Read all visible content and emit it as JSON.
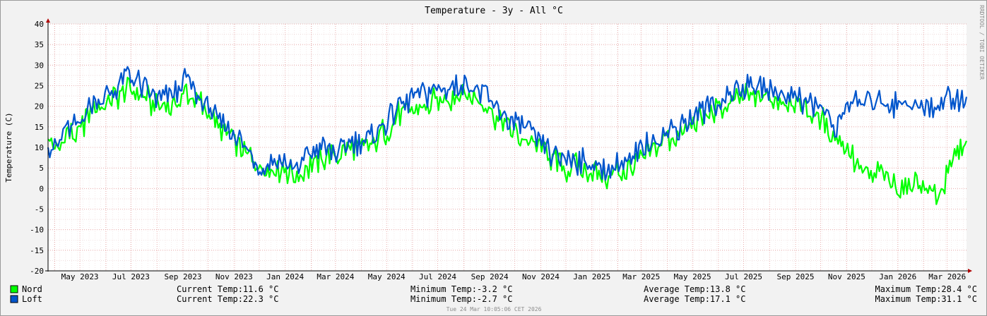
{
  "chart_data": {
    "type": "line",
    "title": "Temperature - 3y - All °C",
    "ylabel": "Temperature (C)",
    "xlabel": "",
    "ylim": [
      -20,
      40
    ],
    "yticks": [
      40,
      35,
      30,
      25,
      20,
      15,
      10,
      5,
      0,
      -5,
      -10,
      -15,
      -20
    ],
    "xticks": [
      "May 2023",
      "Jul 2023",
      "Sep 2023",
      "Nov 2023",
      "Jan 2024",
      "Mar 2024",
      "May 2024",
      "Jul 2024",
      "Sep 2024",
      "Nov 2024",
      "Jan 2025",
      "Mar 2025",
      "May 2025",
      "Jul 2025",
      "Sep 2025",
      "Nov 2025",
      "Jan 2026",
      "Mar 2026"
    ],
    "x_range": [
      "2023-03-24",
      "2026-03-24"
    ],
    "grid": true,
    "legend_position": "bottom-left",
    "series": [
      {
        "name": "Nord",
        "color": "#00ff00",
        "stats": {
          "current": "Current Temp:11.6 °C",
          "minimum": "Minimum Temp:-3.2 °C",
          "average": "Average Temp:13.8 °C",
          "maximum": "Maximum Temp:28.4 °C"
        },
        "points": [
          [
            "2023-03-24",
            12
          ],
          [
            "2023-04-05",
            10
          ],
          [
            "2023-04-15",
            14
          ],
          [
            "2023-04-28",
            13
          ],
          [
            "2023-05-10",
            18
          ],
          [
            "2023-05-25",
            20
          ],
          [
            "2023-06-10",
            22
          ],
          [
            "2023-06-25",
            24
          ],
          [
            "2023-07-10",
            23
          ],
          [
            "2023-07-25",
            21
          ],
          [
            "2023-08-10",
            20
          ],
          [
            "2023-08-25",
            21
          ],
          [
            "2023-09-05",
            24
          ],
          [
            "2023-09-15",
            22
          ],
          [
            "2023-09-30",
            19
          ],
          [
            "2023-10-15",
            15
          ],
          [
            "2023-10-31",
            12
          ],
          [
            "2023-11-15",
            9
          ],
          [
            "2023-11-30",
            5
          ],
          [
            "2023-12-15",
            4
          ],
          [
            "2023-12-31",
            5
          ],
          [
            "2024-01-15",
            3
          ],
          [
            "2024-01-31",
            6
          ],
          [
            "2024-02-15",
            7
          ],
          [
            "2024-02-29",
            8
          ],
          [
            "2024-03-15",
            9
          ],
          [
            "2024-03-31",
            10
          ],
          [
            "2024-04-15",
            11
          ],
          [
            "2024-04-30",
            14
          ],
          [
            "2024-05-15",
            18
          ],
          [
            "2024-05-31",
            19
          ],
          [
            "2024-06-15",
            20
          ],
          [
            "2024-06-30",
            21
          ],
          [
            "2024-07-15",
            22
          ],
          [
            "2024-07-31",
            23
          ],
          [
            "2024-08-15",
            22
          ],
          [
            "2024-08-31",
            20
          ],
          [
            "2024-09-15",
            16
          ],
          [
            "2024-09-30",
            14
          ],
          [
            "2024-10-15",
            12
          ],
          [
            "2024-10-31",
            10
          ],
          [
            "2024-11-15",
            7
          ],
          [
            "2024-11-30",
            5
          ],
          [
            "2024-12-15",
            5
          ],
          [
            "2024-12-31",
            4
          ],
          [
            "2025-01-15",
            3
          ],
          [
            "2025-01-31",
            4
          ],
          [
            "2025-02-15",
            5
          ],
          [
            "2025-02-28",
            7
          ],
          [
            "2025-03-15",
            9
          ],
          [
            "2025-03-31",
            12
          ],
          [
            "2025-04-15",
            13
          ],
          [
            "2025-04-30",
            15
          ],
          [
            "2025-05-15",
            17
          ],
          [
            "2025-05-31",
            19
          ],
          [
            "2025-06-15",
            21
          ],
          [
            "2025-06-30",
            22
          ],
          [
            "2025-07-15",
            23
          ],
          [
            "2025-07-31",
            22
          ],
          [
            "2025-08-15",
            21
          ],
          [
            "2025-08-31",
            21
          ],
          [
            "2025-09-15",
            19
          ],
          [
            "2025-09-30",
            17
          ],
          [
            "2025-10-10",
            15
          ],
          [
            "2025-10-20",
            12
          ],
          [
            "2025-10-31",
            10
          ],
          [
            "2025-11-10",
            7
          ],
          [
            "2025-11-20",
            4
          ],
          [
            "2025-11-30",
            3
          ],
          [
            "2025-12-10",
            5
          ],
          [
            "2025-12-20",
            2
          ],
          [
            "2025-12-31",
            1
          ],
          [
            "2026-01-10",
            -1
          ],
          [
            "2026-01-20",
            3
          ],
          [
            "2026-01-31",
            0
          ],
          [
            "2026-02-10",
            -1
          ],
          [
            "2026-02-20",
            -2
          ],
          [
            "2026-02-28",
            2
          ],
          [
            "2026-03-08",
            7
          ],
          [
            "2026-03-15",
            10
          ],
          [
            "2026-03-24",
            11.6
          ]
        ]
      },
      {
        "name": "Loft",
        "color": "#0055cc",
        "stats": {
          "current": "Current Temp:22.3 °C",
          "minimum": "Minimum Temp:-2.7 °C",
          "average": "Average Temp:17.1 °C",
          "maximum": "Maximum Temp:31.1 °C"
        },
        "points": [
          [
            "2023-03-24",
            10
          ],
          [
            "2023-04-05",
            11
          ],
          [
            "2023-04-15",
            15
          ],
          [
            "2023-04-28",
            15
          ],
          [
            "2023-05-10",
            20
          ],
          [
            "2023-05-25",
            22
          ],
          [
            "2023-06-10",
            24
          ],
          [
            "2023-06-25",
            27
          ],
          [
            "2023-07-10",
            26
          ],
          [
            "2023-07-25",
            22
          ],
          [
            "2023-08-10",
            22
          ],
          [
            "2023-08-25",
            23
          ],
          [
            "2023-09-05",
            27
          ],
          [
            "2023-09-15",
            24
          ],
          [
            "2023-09-30",
            20
          ],
          [
            "2023-10-15",
            16
          ],
          [
            "2023-10-31",
            13
          ],
          [
            "2023-11-15",
            10
          ],
          [
            "2023-11-30",
            5
          ],
          [
            "2023-12-15",
            6
          ],
          [
            "2023-12-31",
            6
          ],
          [
            "2024-01-15",
            4
          ],
          [
            "2024-01-31",
            9
          ],
          [
            "2024-02-15",
            10
          ],
          [
            "2024-02-29",
            9
          ],
          [
            "2024-03-15",
            11
          ],
          [
            "2024-03-31",
            11
          ],
          [
            "2024-04-15",
            13
          ],
          [
            "2024-04-30",
            16
          ],
          [
            "2024-05-15",
            20
          ],
          [
            "2024-05-31",
            22
          ],
          [
            "2024-06-15",
            23
          ],
          [
            "2024-06-30",
            24
          ],
          [
            "2024-07-15",
            25
          ],
          [
            "2024-07-31",
            26
          ],
          [
            "2024-08-15",
            24
          ],
          [
            "2024-08-31",
            22
          ],
          [
            "2024-09-15",
            18
          ],
          [
            "2024-09-30",
            16
          ],
          [
            "2024-10-15",
            14
          ],
          [
            "2024-10-31",
            12
          ],
          [
            "2024-11-15",
            8
          ],
          [
            "2024-11-30",
            7
          ],
          [
            "2024-12-15",
            7
          ],
          [
            "2024-12-31",
            6
          ],
          [
            "2025-01-15",
            5
          ],
          [
            "2025-01-31",
            6
          ],
          [
            "2025-02-15",
            6
          ],
          [
            "2025-02-28",
            9
          ],
          [
            "2025-03-15",
            12
          ],
          [
            "2025-03-31",
            14
          ],
          [
            "2025-04-15",
            15
          ],
          [
            "2025-04-30",
            17
          ],
          [
            "2025-05-15",
            19
          ],
          [
            "2025-05-31",
            21
          ],
          [
            "2025-06-15",
            23
          ],
          [
            "2025-06-30",
            24
          ],
          [
            "2025-07-15",
            25
          ],
          [
            "2025-07-31",
            24
          ],
          [
            "2025-08-15",
            23
          ],
          [
            "2025-08-31",
            23
          ],
          [
            "2025-09-15",
            21
          ],
          [
            "2025-09-30",
            20
          ],
          [
            "2025-10-10",
            17
          ],
          [
            "2025-10-20",
            14
          ],
          [
            "2025-10-31",
            21
          ],
          [
            "2025-11-10",
            21
          ],
          [
            "2025-11-20",
            20
          ],
          [
            "2025-11-30",
            22
          ],
          [
            "2025-12-10",
            21
          ],
          [
            "2025-12-20",
            21
          ],
          [
            "2025-12-31",
            20
          ],
          [
            "2026-01-10",
            21
          ],
          [
            "2026-01-20",
            20
          ],
          [
            "2026-01-31",
            19
          ],
          [
            "2026-02-10",
            20
          ],
          [
            "2026-02-20",
            21
          ],
          [
            "2026-02-28",
            22
          ],
          [
            "2026-03-08",
            22
          ],
          [
            "2026-03-15",
            22
          ],
          [
            "2026-03-24",
            22.3
          ]
        ]
      }
    ]
  },
  "side_text": "RRDTOOL / TOBI OETIKER",
  "timestamp": "Tue 24 Mar 10:05:06 CET 2026"
}
